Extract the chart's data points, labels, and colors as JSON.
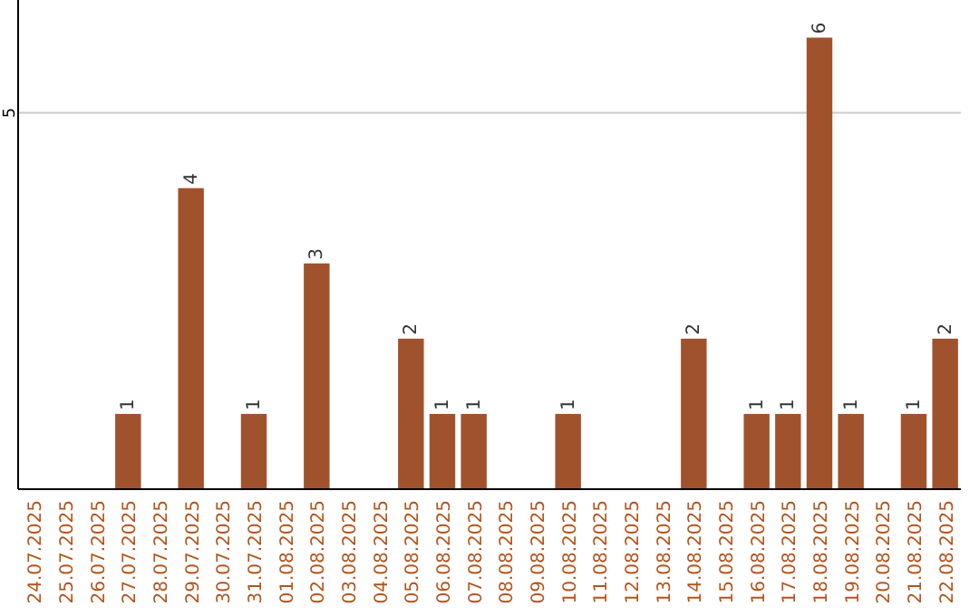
{
  "chart_data": {
    "type": "bar",
    "categories": [
      "24.07.2025",
      "25.07.2025",
      "26.07.2025",
      "27.07.2025",
      "28.07.2025",
      "29.07.2025",
      "30.07.2025",
      "31.07.2025",
      "01.08.2025",
      "02.08.2025",
      "03.08.2025",
      "04.08.2025",
      "05.08.2025",
      "06.08.2025",
      "07.08.2025",
      "08.08.2025",
      "09.08.2025",
      "10.08.2025",
      "11.08.2025",
      "12.08.2025",
      "13.08.2025",
      "14.08.2025",
      "15.08.2025",
      "16.08.2025",
      "17.08.2025",
      "18.08.2025",
      "19.08.2025",
      "20.08.2025",
      "21.08.2025",
      "22.08.2025"
    ],
    "values": [
      0,
      0,
      0,
      1,
      0,
      4,
      0,
      1,
      0,
      3,
      0,
      0,
      2,
      1,
      1,
      0,
      0,
      1,
      0,
      0,
      0,
      2,
      0,
      1,
      1,
      6,
      1,
      0,
      1,
      2
    ],
    "value_labels": [
      null,
      null,
      null,
      "1",
      null,
      "4",
      null,
      "1",
      null,
      "3",
      null,
      null,
      "2",
      "1",
      "1",
      null,
      null,
      "1",
      null,
      null,
      null,
      "2",
      null,
      "1",
      "1",
      "6",
      "1",
      null,
      "1",
      "2"
    ],
    "color": "#a0522d",
    "ylim": [
      0,
      6.5
    ],
    "yticks": [
      5
    ],
    "grid": "y"
  }
}
